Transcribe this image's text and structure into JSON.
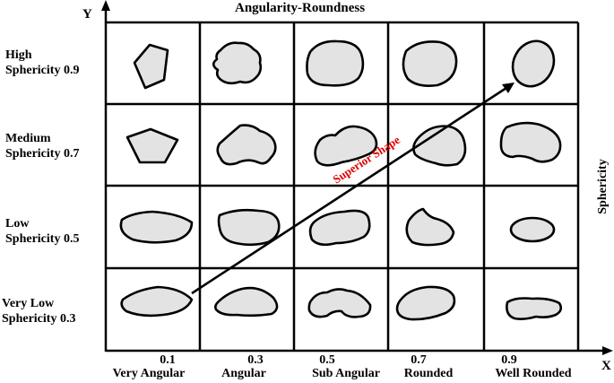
{
  "title": "Angularity-Roundness",
  "y_axis_label": "Y",
  "x_axis_label": "X",
  "right_label": "Sphericity",
  "arrow_label": "Superior Shape",
  "rows": [
    {
      "name": "High",
      "label": "Sphericity",
      "value": "0.9"
    },
    {
      "name": "Medium",
      "label": "Sphericity",
      "value": "0.7"
    },
    {
      "name": "Low",
      "label": "Sphericity",
      "value": "0.5"
    },
    {
      "name": "Very Low",
      "label": "Sphericity",
      "value": "0.3"
    }
  ],
  "columns": [
    {
      "value": "0.1",
      "name": "Very Angular"
    },
    {
      "value": "0.3",
      "name": "Angular"
    },
    {
      "value": "0.5",
      "name": "Sub Angular"
    },
    {
      "value": "0.7",
      "name": "Rounded"
    },
    {
      "value": "0.9",
      "name": "Well Rounded"
    }
  ],
  "colors": {
    "shape_fill": "#e3e3e3",
    "arrow_label": "#e00000",
    "lines": "#000000"
  }
}
